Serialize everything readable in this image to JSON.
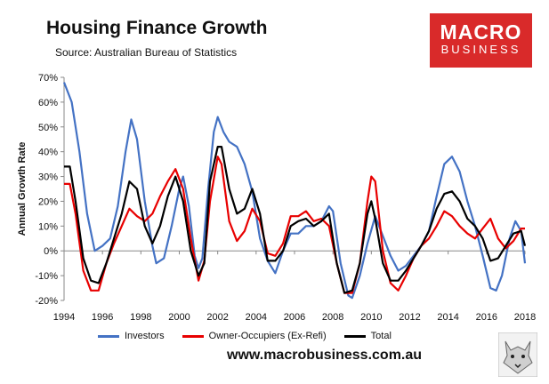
{
  "header": {
    "title": "Housing Finance Growth",
    "subtitle": "Source: Australian Bureau of Statistics"
  },
  "logo": {
    "line1": "MACRO",
    "line2": "BUSINESS",
    "background": "#d92a2a"
  },
  "footer": {
    "website": "www.macrobusiness.com.au"
  },
  "chart_data": {
    "type": "line",
    "title": "Housing Finance Growth",
    "ylabel": "Annual Growth Rate",
    "xlabel": "",
    "xlim": [
      1994,
      2018
    ],
    "ylim": [
      -20,
      70
    ],
    "x_ticks": [
      "1994",
      "1996",
      "1998",
      "2000",
      "2002",
      "2004",
      "2006",
      "2008",
      "2010",
      "2012",
      "2014",
      "2016",
      "2018"
    ],
    "y_ticks": [
      "-20%",
      "-10%",
      "0%",
      "10%",
      "20%",
      "30%",
      "40%",
      "50%",
      "60%",
      "70%"
    ],
    "grid": false,
    "legend_position": "bottom",
    "series": [
      {
        "name": "Investors",
        "color": "#4472c4",
        "points": [
          [
            1994.0,
            68
          ],
          [
            1994.4,
            60
          ],
          [
            1994.8,
            40
          ],
          [
            1995.2,
            15
          ],
          [
            1995.6,
            0
          ],
          [
            1996.0,
            2
          ],
          [
            1996.4,
            5
          ],
          [
            1996.8,
            18
          ],
          [
            1997.2,
            40
          ],
          [
            1997.5,
            53
          ],
          [
            1997.8,
            45
          ],
          [
            1998.2,
            20
          ],
          [
            1998.6,
            2
          ],
          [
            1998.8,
            -5
          ],
          [
            1999.2,
            -3
          ],
          [
            1999.6,
            10
          ],
          [
            2000.0,
            25
          ],
          [
            2000.2,
            30
          ],
          [
            2000.5,
            18
          ],
          [
            2000.8,
            -2
          ],
          [
            2001.0,
            -7
          ],
          [
            2001.2,
            -3
          ],
          [
            2001.5,
            25
          ],
          [
            2001.8,
            48
          ],
          [
            2002.0,
            54
          ],
          [
            2002.3,
            48
          ],
          [
            2002.6,
            44
          ],
          [
            2003.0,
            42
          ],
          [
            2003.4,
            35
          ],
          [
            2003.8,
            24
          ],
          [
            2004.2,
            5
          ],
          [
            2004.6,
            -4
          ],
          [
            2005.0,
            -9
          ],
          [
            2005.4,
            0
          ],
          [
            2005.8,
            7
          ],
          [
            2006.2,
            7
          ],
          [
            2006.6,
            10
          ],
          [
            2007.0,
            10
          ],
          [
            2007.4,
            12
          ],
          [
            2007.8,
            18
          ],
          [
            2008.0,
            16
          ],
          [
            2008.4,
            -5
          ],
          [
            2008.8,
            -18
          ],
          [
            2009.0,
            -19
          ],
          [
            2009.4,
            -10
          ],
          [
            2009.8,
            3
          ],
          [
            2010.2,
            14
          ],
          [
            2010.6,
            6
          ],
          [
            2011.0,
            -2
          ],
          [
            2011.4,
            -8
          ],
          [
            2011.8,
            -6
          ],
          [
            2012.2,
            -2
          ],
          [
            2012.6,
            2
          ],
          [
            2013.0,
            8
          ],
          [
            2013.4,
            22
          ],
          [
            2013.8,
            35
          ],
          [
            2014.2,
            38
          ],
          [
            2014.6,
            32
          ],
          [
            2015.0,
            20
          ],
          [
            2015.4,
            10
          ],
          [
            2015.8,
            -2
          ],
          [
            2016.2,
            -15
          ],
          [
            2016.5,
            -16
          ],
          [
            2016.8,
            -10
          ],
          [
            2017.2,
            5
          ],
          [
            2017.5,
            12
          ],
          [
            2017.8,
            8
          ],
          [
            2018.0,
            -5
          ]
        ]
      },
      {
        "name": "Owner-Occupiers (Ex-Refi)",
        "color": "#e80000",
        "points": [
          [
            1994.0,
            27
          ],
          [
            1994.3,
            27
          ],
          [
            1994.6,
            15
          ],
          [
            1995.0,
            -8
          ],
          [
            1995.4,
            -16
          ],
          [
            1995.8,
            -16
          ],
          [
            1996.2,
            -5
          ],
          [
            1996.6,
            3
          ],
          [
            1997.0,
            10
          ],
          [
            1997.4,
            17
          ],
          [
            1997.8,
            14
          ],
          [
            1998.2,
            12
          ],
          [
            1998.6,
            15
          ],
          [
            1999.0,
            22
          ],
          [
            1999.4,
            28
          ],
          [
            1999.8,
            33
          ],
          [
            2000.2,
            25
          ],
          [
            2000.6,
            5
          ],
          [
            2001.0,
            -12
          ],
          [
            2001.3,
            -4
          ],
          [
            2001.6,
            20
          ],
          [
            2002.0,
            38
          ],
          [
            2002.2,
            35
          ],
          [
            2002.6,
            12
          ],
          [
            2003.0,
            4
          ],
          [
            2003.4,
            8
          ],
          [
            2003.8,
            17
          ],
          [
            2004.2,
            12
          ],
          [
            2004.6,
            -1
          ],
          [
            2005.0,
            -2
          ],
          [
            2005.4,
            3
          ],
          [
            2005.8,
            14
          ],
          [
            2006.2,
            14
          ],
          [
            2006.6,
            16
          ],
          [
            2007.0,
            12
          ],
          [
            2007.4,
            13
          ],
          [
            2007.8,
            10
          ],
          [
            2008.2,
            -5
          ],
          [
            2008.6,
            -17
          ],
          [
            2009.0,
            -17
          ],
          [
            2009.4,
            -5
          ],
          [
            2009.8,
            20
          ],
          [
            2010.0,
            30
          ],
          [
            2010.2,
            28
          ],
          [
            2010.6,
            0
          ],
          [
            2011.0,
            -13
          ],
          [
            2011.4,
            -16
          ],
          [
            2011.8,
            -10
          ],
          [
            2012.2,
            -3
          ],
          [
            2012.6,
            2
          ],
          [
            2013.0,
            5
          ],
          [
            2013.4,
            10
          ],
          [
            2013.8,
            16
          ],
          [
            2014.2,
            14
          ],
          [
            2014.6,
            10
          ],
          [
            2015.0,
            7
          ],
          [
            2015.4,
            5
          ],
          [
            2015.8,
            9
          ],
          [
            2016.2,
            13
          ],
          [
            2016.6,
            5
          ],
          [
            2017.0,
            1
          ],
          [
            2017.4,
            4
          ],
          [
            2017.8,
            9
          ],
          [
            2018.0,
            9
          ]
        ]
      },
      {
        "name": "Total",
        "color": "#000000",
        "points": [
          [
            1994.0,
            34
          ],
          [
            1994.3,
            34
          ],
          [
            1994.6,
            20
          ],
          [
            1995.0,
            -3
          ],
          [
            1995.4,
            -12
          ],
          [
            1995.8,
            -13
          ],
          [
            1996.2,
            -5
          ],
          [
            1996.6,
            5
          ],
          [
            1997.0,
            15
          ],
          [
            1997.4,
            28
          ],
          [
            1997.8,
            25
          ],
          [
            1998.2,
            10
          ],
          [
            1998.6,
            3
          ],
          [
            1999.0,
            10
          ],
          [
            1999.4,
            22
          ],
          [
            1999.8,
            30
          ],
          [
            2000.2,
            20
          ],
          [
            2000.6,
            0
          ],
          [
            2001.0,
            -10
          ],
          [
            2001.3,
            -5
          ],
          [
            2001.6,
            28
          ],
          [
            2002.0,
            42
          ],
          [
            2002.2,
            42
          ],
          [
            2002.6,
            25
          ],
          [
            2003.0,
            15
          ],
          [
            2003.4,
            17
          ],
          [
            2003.8,
            25
          ],
          [
            2004.2,
            15
          ],
          [
            2004.6,
            -4
          ],
          [
            2005.0,
            -4
          ],
          [
            2005.4,
            0
          ],
          [
            2005.8,
            10
          ],
          [
            2006.2,
            12
          ],
          [
            2006.6,
            13
          ],
          [
            2007.0,
            10
          ],
          [
            2007.4,
            12
          ],
          [
            2007.8,
            15
          ],
          [
            2008.2,
            -5
          ],
          [
            2008.6,
            -17
          ],
          [
            2009.0,
            -16
          ],
          [
            2009.4,
            -5
          ],
          [
            2009.8,
            15
          ],
          [
            2010.0,
            20
          ],
          [
            2010.2,
            13
          ],
          [
            2010.6,
            -5
          ],
          [
            2011.0,
            -12
          ],
          [
            2011.4,
            -12
          ],
          [
            2011.8,
            -8
          ],
          [
            2012.2,
            -3
          ],
          [
            2012.6,
            2
          ],
          [
            2013.0,
            8
          ],
          [
            2013.4,
            17
          ],
          [
            2013.8,
            23
          ],
          [
            2014.2,
            24
          ],
          [
            2014.6,
            20
          ],
          [
            2015.0,
            13
          ],
          [
            2015.4,
            10
          ],
          [
            2015.8,
            5
          ],
          [
            2016.2,
            -4
          ],
          [
            2016.6,
            -3
          ],
          [
            2017.0,
            2
          ],
          [
            2017.4,
            7
          ],
          [
            2017.8,
            8
          ],
          [
            2018.0,
            2
          ]
        ]
      }
    ]
  }
}
